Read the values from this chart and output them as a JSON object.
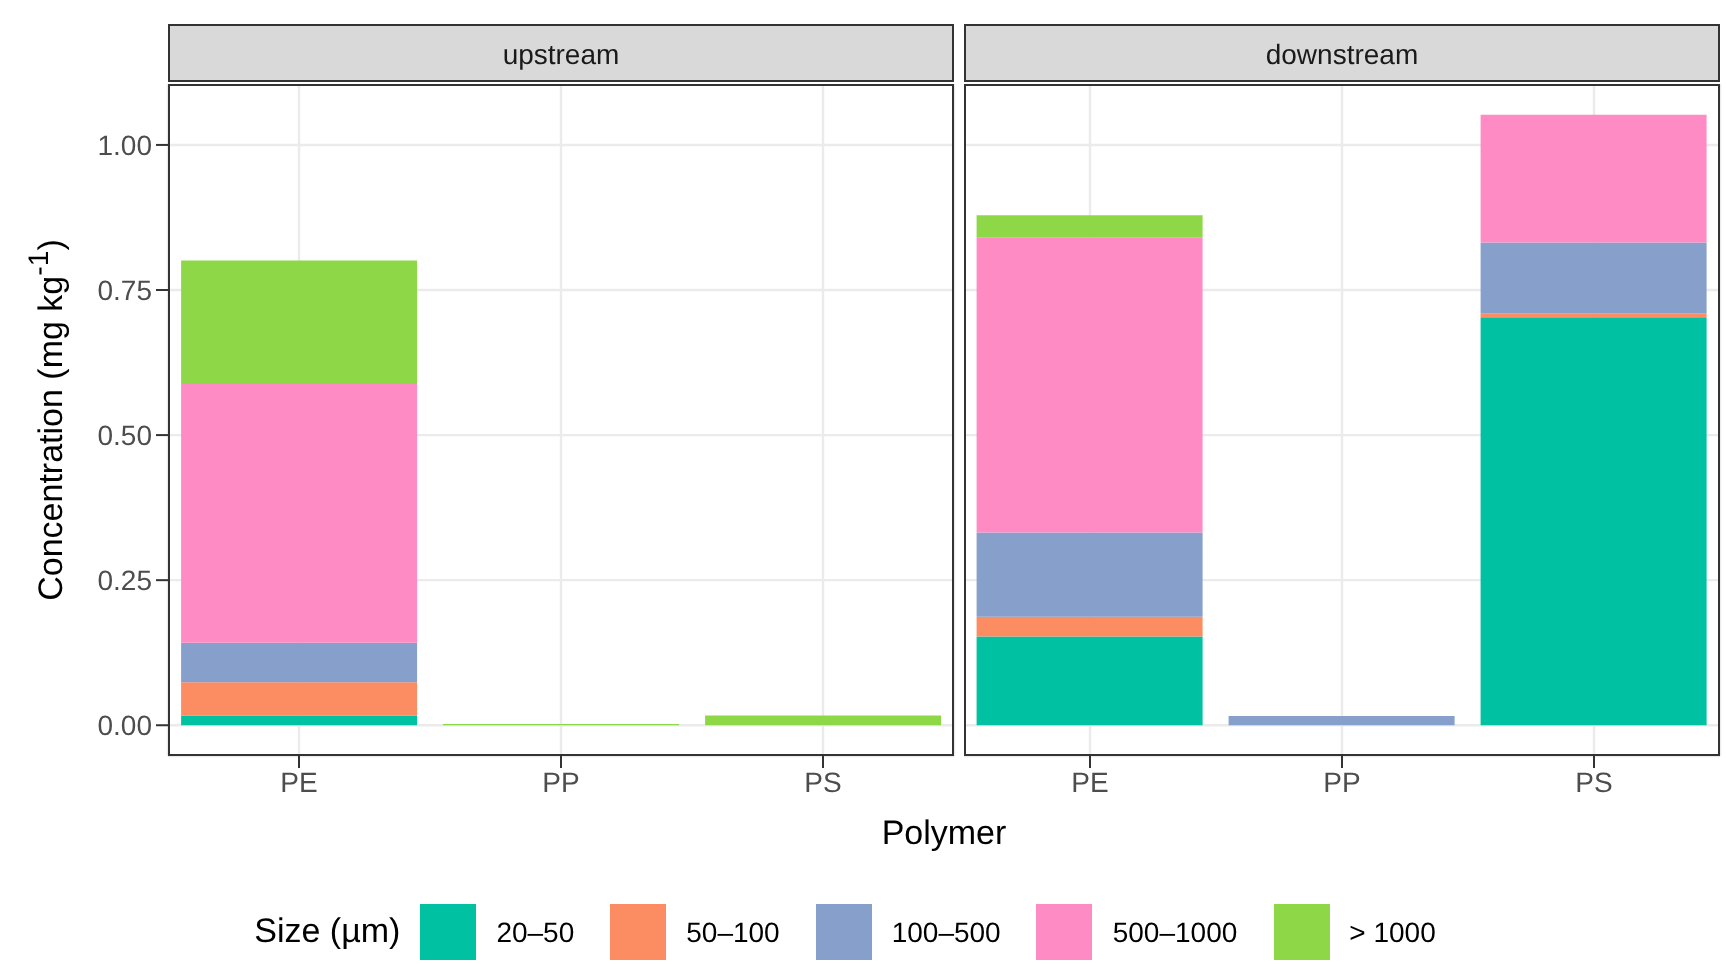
{
  "chart_data": [
    {
      "type": "bar",
      "title": "upstream",
      "xlabel": "Polymer",
      "ylabel": "Concentration (mg kg$^{-1}$)",
      "legend_title": "Size (µm)",
      "legend": "bottom",
      "stacked": true,
      "grid": true,
      "categories": [
        "PE",
        "PP",
        "PS"
      ],
      "ylim": [
        -0.053,
        1.105
      ],
      "yticks": [
        {
          "value": 0,
          "label": "0.00"
        },
        {
          "value": 0.25,
          "label": "0.25"
        },
        {
          "value": 0.5,
          "label": "0.50"
        },
        {
          "value": 0.75,
          "label": "0.75"
        },
        {
          "value": 1,
          "label": "1.00"
        }
      ],
      "series": [
        {
          "name": "20–50",
          "color": "#00c1a2",
          "values": [
            0.017,
            0,
            0
          ]
        },
        {
          "name": "50–100",
          "color": "#fc8d62",
          "values": [
            0.057,
            0,
            0
          ]
        },
        {
          "name": "100–500",
          "color": "#86a0cb",
          "values": [
            0.068,
            0,
            0
          ]
        },
        {
          "name": "500–1000",
          "color": "#ff8bc4",
          "values": [
            0.446,
            0,
            0
          ]
        },
        {
          "name": "> 1000",
          "color": "#8ed847",
          "values": [
            0.213,
            0.002,
            0.017
          ]
        }
      ]
    },
    {
      "type": "bar",
      "title": "downstream",
      "stacked": true,
      "grid": true,
      "tick_labels": "x",
      "categories": [
        "PE",
        "PP",
        "PS"
      ],
      "ylim": [
        -0.053,
        1.105
      ],
      "yticks": [
        0,
        0.25,
        0.5,
        0.75,
        1
      ],
      "series": [
        {
          "color": "#00c1a2",
          "values": [
            0.153,
            0,
            0.703
          ]
        },
        {
          "color": "#fc8d62",
          "values": [
            0.034,
            0,
            0.007
          ]
        },
        {
          "color": "#86a0cb",
          "values": [
            0.145,
            0.016,
            0.122
          ]
        },
        {
          "color": "#ff8bc4",
          "values": [
            0.509,
            0,
            0.22
          ]
        },
        {
          "color": "#8ed847",
          "values": [
            0.038,
            0,
            0
          ]
        }
      ]
    }
  ]
}
